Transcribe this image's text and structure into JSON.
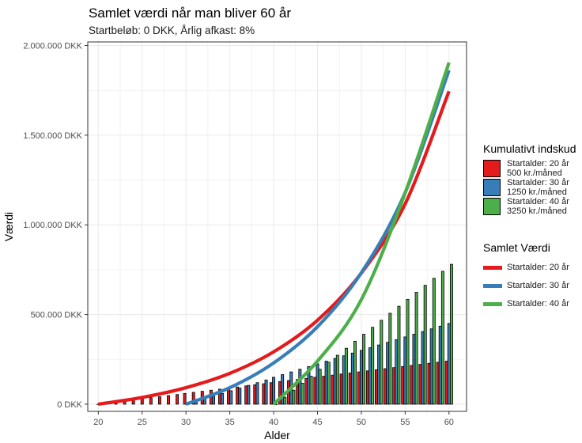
{
  "title": "Samlet værdi når man bliver 60 år",
  "subtitle": "Startbeløb: 0 DKK, Årlig afkast: 8%",
  "colors": {
    "red": "#e41a1c",
    "blue": "#377eb8",
    "green": "#4daf4a",
    "grid": "#ebebeb",
    "border": "#333333"
  },
  "legend_bars": {
    "title": "Kumulativt indskud",
    "items": [
      {
        "line1": "Startalder: 20 år",
        "line2": "500 kr./måned",
        "color": "#e41a1c"
      },
      {
        "line1": "Startalder: 30 år",
        "line2": "1250 kr./måned",
        "color": "#377eb8"
      },
      {
        "line1": "Startalder: 40 år",
        "line2": "3250 kr./måned",
        "color": "#4daf4a"
      }
    ]
  },
  "legend_lines": {
    "title": "Samlet Værdi",
    "items": [
      {
        "label": "Startalder: 20 år",
        "color": "#e41a1c"
      },
      {
        "label": "Startalder: 30 år",
        "color": "#377eb8"
      },
      {
        "label": "Startalder: 40 år",
        "color": "#4daf4a"
      }
    ]
  },
  "chart_data": {
    "type": "bar+line",
    "xlabel": "Alder",
    "ylabel": "Værdi",
    "xlim": [
      18.8,
      62
    ],
    "ylim": [
      -40000,
      2020000
    ],
    "x_ticks": [
      20,
      25,
      30,
      35,
      40,
      45,
      50,
      55,
      60
    ],
    "y_ticks": [
      0,
      500000,
      1000000,
      1500000,
      2000000
    ],
    "y_tick_labels": [
      "0 DKK",
      "500.000 DKK",
      "1.000.000 DKK",
      "1.500.000 DKK",
      "2.000.000 DKK"
    ],
    "grid": true,
    "legend_position": "right",
    "bar_series": [
      {
        "name": "Startalder: 20 år\n500 kr./måned",
        "start_age": 20,
        "values": [
          0,
          6000,
          12000,
          18000,
          24000,
          30000,
          36000,
          42000,
          48000,
          54000,
          60000,
          66000,
          72000,
          78000,
          84000,
          90000,
          96000,
          102000,
          108000,
          114000,
          120000,
          126000,
          132000,
          138000,
          144000,
          150000,
          156000,
          162000,
          168000,
          174000,
          180000,
          186000,
          192000,
          198000,
          204000,
          210000,
          216000,
          222000,
          228000,
          234000,
          240000
        ]
      },
      {
        "name": "Startalder: 30 år\n1250 kr./måned",
        "start_age": 30,
        "values": [
          0,
          15000,
          30000,
          45000,
          60000,
          75000,
          90000,
          105000,
          120000,
          135000,
          150000,
          165000,
          180000,
          195000,
          210000,
          225000,
          240000,
          255000,
          270000,
          285000,
          300000,
          315000,
          330000,
          345000,
          360000,
          375000,
          390000,
          405000,
          420000,
          435000,
          450000
        ]
      },
      {
        "name": "Startalder: 40 år\n3250 kr./måned",
        "start_age": 40,
        "values": [
          0,
          39000,
          78000,
          117000,
          156000,
          195000,
          234000,
          273000,
          312000,
          351000,
          390000,
          429000,
          468000,
          507000,
          546000,
          585000,
          624000,
          663000,
          702000,
          741000,
          780000
        ]
      }
    ],
    "line_series": [
      {
        "name": "Startalder: 20 år",
        "x": [
          20,
          25,
          30,
          35,
          40,
          45,
          50,
          55,
          60
        ],
        "y": [
          0,
          37500,
          92000,
          172000,
          292000,
          468000,
          731000,
          1117000,
          1745000
        ]
      },
      {
        "name": "Startalder: 30 år",
        "x": [
          30,
          35,
          40,
          45,
          50,
          55,
          60
        ],
        "y": [
          0,
          92000,
          230000,
          432000,
          733000,
          1180000,
          1862000
        ]
      },
      {
        "name": "Startalder: 40 år",
        "x": [
          40,
          45,
          50,
          55,
          60
        ],
        "y": [
          0,
          240000,
          583000,
          1178000,
          1905000
        ]
      }
    ]
  }
}
